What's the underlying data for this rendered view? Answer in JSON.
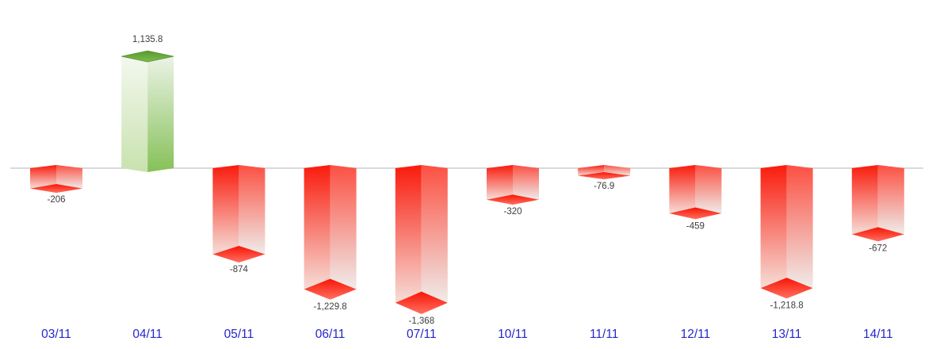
{
  "chart_data": {
    "type": "bar",
    "style": "3d-column",
    "title": "",
    "xlabel": "",
    "ylabel": "",
    "grid": false,
    "legend": false,
    "zero_baseline": true,
    "categories": [
      "03/11",
      "04/11",
      "05/11",
      "06/11",
      "07/11",
      "10/11",
      "11/11",
      "12/11",
      "13/11",
      "14/11"
    ],
    "values": [
      -206,
      1135.8,
      -874,
      -1229.8,
      -1368,
      -320,
      -76.9,
      -459,
      -1218.8,
      -672
    ],
    "value_labels": [
      "-206",
      "1,135.8",
      "-874",
      "-1,229.8",
      "-1,368",
      "-320",
      "-76.9",
      "-459",
      "-1,218.8",
      "-672"
    ],
    "colors": {
      "positive_face_left": [
        "#f3f8ef",
        "#c8e2ae"
      ],
      "positive_face_right": [
        "#ebf3e5",
        "#86c158"
      ],
      "positive_cap": [
        "#57992c",
        "#7fbc52"
      ],
      "positive_cap_edge": "#4d8c24",
      "negative_face_left": [
        "#f91b0c",
        "#f6ded8"
      ],
      "negative_face_right": [
        "#fc5042",
        "#efecea"
      ],
      "negative_cap": [
        "#f81505",
        "#ff7062"
      ],
      "axis_line": "#d9d9d9",
      "value_label": "#3c3c3c",
      "category_label": "#2626cd"
    }
  }
}
